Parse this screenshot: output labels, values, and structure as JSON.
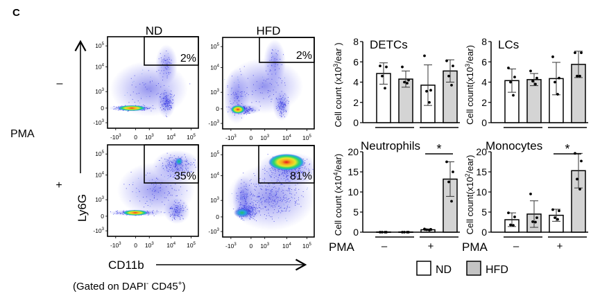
{
  "panel_label": "C",
  "flow": {
    "column_labels": [
      "ND",
      "HFD"
    ],
    "row_labels": [
      "–",
      "+"
    ],
    "treatment_label": "PMA",
    "y_axis_label": "Ly6G",
    "x_axis_label": "CD11b",
    "gating_note": {
      "prefix": "(Gated on DAPI",
      "sup1": "-",
      "middle": " CD45",
      "sup2": "+",
      "suffix": ")"
    },
    "tick_labels": [
      "-10",
      "0",
      "10",
      "10",
      "10"
    ],
    "tick_exponents": [
      "3",
      "",
      "3",
      "4",
      "5"
    ],
    "plots": [
      {
        "name": "ND-minus",
        "gate_percent": "2%"
      },
      {
        "name": "HFD-minus",
        "gate_percent": "2%"
      },
      {
        "name": "ND-plus",
        "gate_percent": "35%"
      },
      {
        "name": "HFD-plus",
        "gate_percent": "81%"
      }
    ]
  },
  "legend": {
    "items": [
      {
        "label": "ND",
        "color": "#ffffff"
      },
      {
        "label": "HFD",
        "color": "#d4d4d4"
      }
    ]
  },
  "pma_axis": {
    "label": "PMA",
    "groups": [
      "–",
      "+"
    ]
  },
  "chart_data": [
    {
      "type": "bar",
      "title": "DETCs",
      "ylabel": "Cell count  (x10",
      "ylabel_exp": "3",
      "ylabel_suffix": "/ear )",
      "ylim": [
        0,
        8
      ],
      "yticks": [
        "0",
        "2",
        "4",
        "6",
        "8"
      ],
      "categories": [
        "ND –",
        "HFD –",
        "ND +",
        "HFD +"
      ],
      "values": [
        4.85,
        4.3,
        3.7,
        5.1
      ],
      "errors": [
        1.05,
        0.8,
        2.0,
        1.1
      ],
      "points": [
        [
          5.6,
          5.5,
          4.6,
          3.4
        ],
        [
          5.5,
          4.2,
          4.0,
          3.9
        ],
        [
          6.6,
          3.2,
          3.1,
          2.0
        ],
        [
          6.1,
          5.6,
          4.6,
          3.7
        ]
      ],
      "significance": null
    },
    {
      "type": "bar",
      "title": "LCs",
      "ylabel": "Cell count(x10",
      "ylabel_exp": "3",
      "ylabel_suffix": "/ear)",
      "ylim": [
        0,
        8
      ],
      "yticks": [
        "0",
        "2",
        "4",
        "6",
        "8"
      ],
      "categories": [
        "ND –",
        "HFD –",
        "ND +",
        "HFD +"
      ],
      "values": [
        4.15,
        4.25,
        4.35,
        5.75
      ],
      "errors": [
        1.15,
        0.6,
        1.6,
        1.3
      ],
      "points": [
        [
          5.4,
          4.5,
          4.0,
          2.7
        ],
        [
          5.1,
          4.4,
          4.1,
          3.8
        ],
        [
          6.5,
          4.4,
          4.0,
          2.8
        ],
        [
          6.9,
          6.9,
          4.6,
          4.6
        ]
      ],
      "significance": null
    },
    {
      "type": "bar",
      "title": "Neutrophils",
      "ylabel": "Cell count (x10",
      "ylabel_exp": "4",
      "ylabel_suffix": "/ear)",
      "ylim": [
        0,
        20
      ],
      "yticks": [
        "0",
        "5",
        "10",
        "15",
        "20"
      ],
      "categories": [
        "ND –",
        "HFD –",
        "ND +",
        "HFD +"
      ],
      "values": [
        0.05,
        0.05,
        0.6,
        13.2
      ],
      "errors": [
        0.05,
        0.05,
        0.2,
        4.3
      ],
      "points": [
        [
          0.0,
          0.0,
          0.0,
          0.0
        ],
        [
          0.0,
          0.0,
          0.0,
          0.0
        ],
        [
          0.8,
          0.7,
          0.6,
          0.5
        ],
        [
          17.5,
          15.0,
          12.5,
          7.7
        ]
      ],
      "significance": {
        "label": "*",
        "between": [
          2,
          3
        ]
      }
    },
    {
      "type": "bar",
      "title": "Monocytes",
      "ylabel": "Cell count(x10",
      "ylabel_exp": "2",
      "ylabel_suffix": "/ear)",
      "ylim": [
        0,
        20
      ],
      "yticks": [
        "0",
        "5",
        "10",
        "15",
        "20"
      ],
      "categories": [
        "ND –",
        "HFD –",
        "ND +",
        "HFD +"
      ],
      "values": [
        3.1,
        4.5,
        4.2,
        15.3
      ],
      "errors": [
        1.7,
        3.3,
        1.5,
        4.3
      ],
      "points": [
        [
          4.8,
          3.8,
          1.8,
          1.7
        ],
        [
          9.5,
          3.6,
          2.6,
          2.5
        ],
        [
          5.6,
          5.3,
          3.6,
          3.2
        ],
        [
          19.6,
          17.7,
          13.2,
          10.7
        ]
      ],
      "significance": {
        "label": "*",
        "between": [
          2,
          3
        ]
      }
    }
  ],
  "colors": {
    "nd": "#ffffff",
    "hfd": "#d4d4d4",
    "ink": "#000000"
  }
}
